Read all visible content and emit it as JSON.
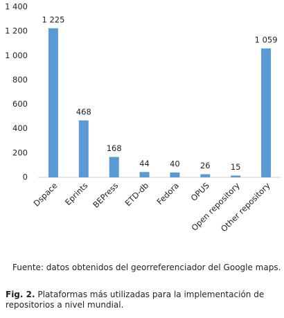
{
  "chart_data": {
    "type": "bar",
    "categories": [
      "Dspace",
      "Eprints",
      "BEPress",
      "ETD-db",
      "Fedora",
      "OPUS",
      "Open repository",
      "Other repository"
    ],
    "values": [
      1225,
      468,
      168,
      44,
      40,
      26,
      15,
      1059
    ],
    "value_labels": [
      "1 225",
      "468",
      "168",
      "44",
      "40",
      "26",
      "15",
      "1 059"
    ],
    "color": "#5b9bd5",
    "ylim": [
      0,
      1400
    ],
    "yticks": [
      0,
      200,
      400,
      600,
      800,
      {
        "value": 1000,
        "label": "1 000"
      },
      {
        "value": 1200,
        "label": "1 200"
      },
      {
        "value": 1400,
        "label": "1 400"
      }
    ],
    "grid": false
  },
  "source": "Fuente: datos obtenidos del georreferenciador del Google maps.",
  "caption": {
    "label": "Fig. 2.",
    "text": "Plataformas más utilizadas para la implementación de repositorios a nivel mundial."
  }
}
